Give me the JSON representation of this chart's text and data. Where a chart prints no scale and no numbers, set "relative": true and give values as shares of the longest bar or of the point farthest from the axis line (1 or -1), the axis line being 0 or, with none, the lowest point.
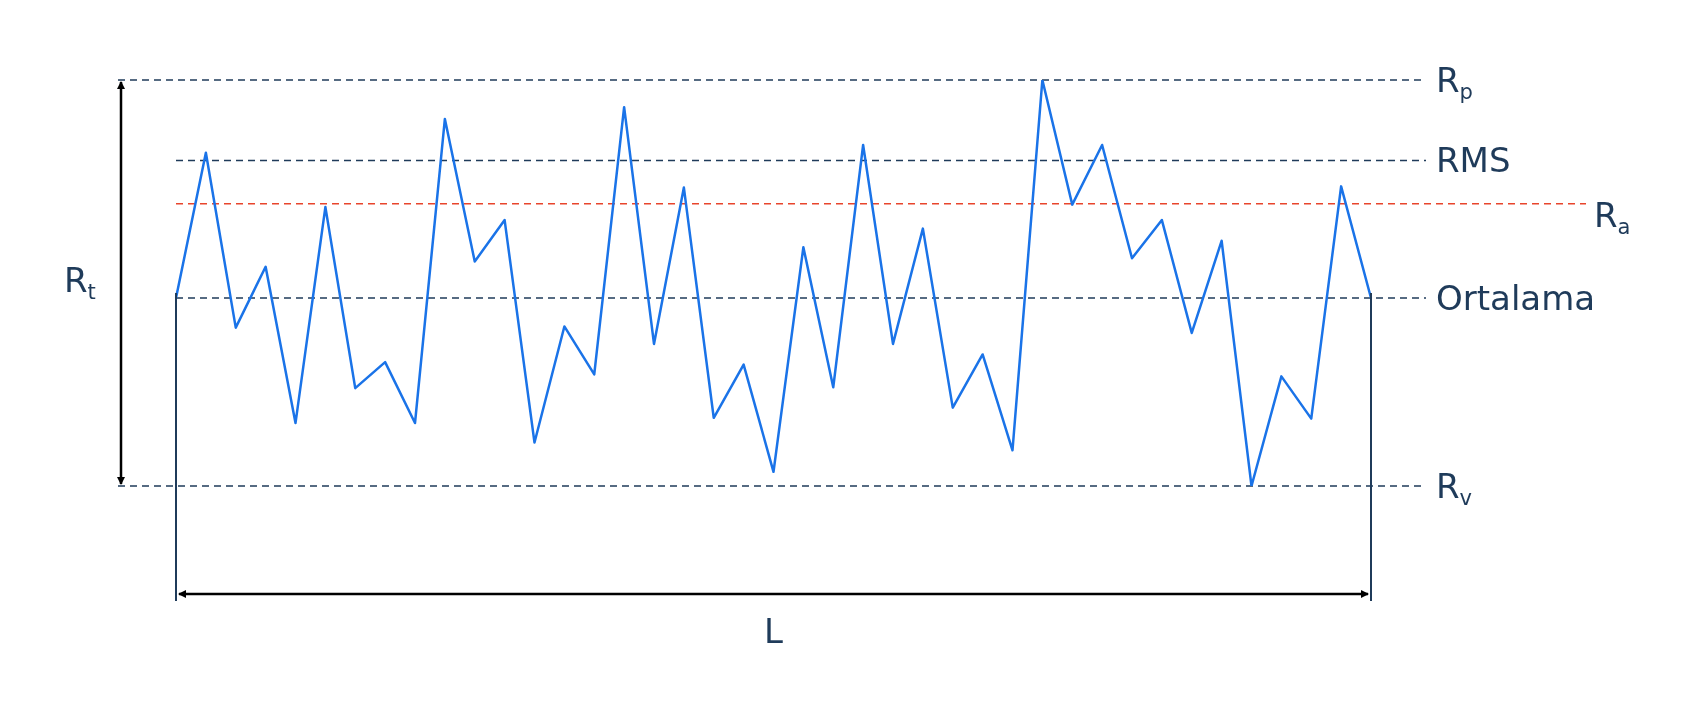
{
  "chart_data": {
    "type": "line",
    "relative": true,
    "categories": [
      null,
      null,
      null,
      null,
      null,
      null,
      null,
      null,
      null,
      null,
      null,
      null,
      null,
      null,
      null,
      null,
      null,
      null,
      null,
      null,
      null,
      null,
      null,
      null,
      null,
      null,
      null,
      null,
      null,
      null,
      null,
      null,
      null,
      null,
      null,
      null,
      null,
      null,
      null,
      null,
      null
    ],
    "series": [
      {
        "color": "#1a73e8",
        "values": [
          0.463,
          0.821,
          0.39,
          0.54,
          0.155,
          0.687,
          0.241,
          0.305,
          0.155,
          0.904,
          0.553,
          0.655,
          0.107,
          0.393,
          0.275,
          0.933,
          0.35,
          0.735,
          0.168,
          0.299,
          0.035,
          0.588,
          0.243,
          0.84,
          0.35,
          0.634,
          0.193,
          0.324,
          0.088,
          1,
          0.693,
          0.84,
          0.561,
          0.655,
          0.377,
          0.604,
          0,
          0.27,
          0.166,
          0.738,
          0.463
        ]
      }
    ],
    "ref_lines": [
      {
        "axis": "y",
        "value": 1,
        "label": "R$_{p}$",
        "color": "#1f3b5a",
        "line_style": "dashed"
      },
      {
        "axis": "y",
        "value": 0.802,
        "label": "RMS",
        "color": "#1f3b5a",
        "line_style": "dashed"
      },
      {
        "axis": "y",
        "value": 0.695,
        "label": "R$_{a}$",
        "color": "#e8452c",
        "line_style": "dashed"
      },
      {
        "axis": "y",
        "value": 0.463,
        "label": "Ortalama",
        "color": "#1f3b5a",
        "line_style": "dashed"
      },
      {
        "axis": "y",
        "value": 0,
        "label": "R$_{v}$",
        "color": "#1f3b5a",
        "line_style": "dashed"
      }
    ],
    "annotations": [
      "R$_{t}$",
      "L"
    ],
    "legend": false,
    "marker": "none",
    "line_style": "solid"
  }
}
